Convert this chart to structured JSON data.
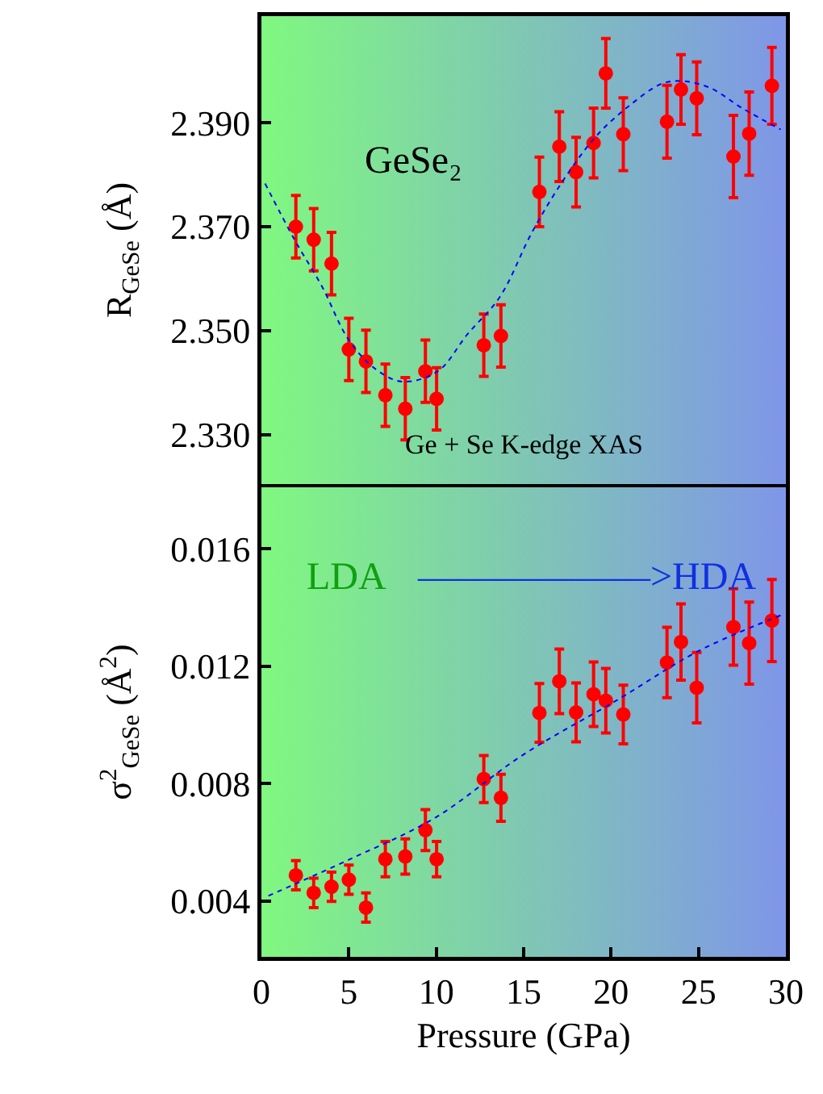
{
  "chart_data": [
    {
      "type": "scatter",
      "ylabel": "R$_{GeSe}$ (Å)",
      "xlim": [
        0,
        30
      ],
      "xticks": [
        0,
        5,
        10,
        15,
        20,
        25,
        30
      ],
      "ylim": [
        2.3205,
        2.4105
      ],
      "yticks": [
        {
          "value": 2.33,
          "label": "2.330"
        },
        {
          "value": 2.35,
          "label": "2.350"
        },
        {
          "value": 2.37,
          "label": "2.370"
        },
        {
          "value": 2.39,
          "label": "2.390"
        }
      ],
      "tick_labels": "y",
      "grid": false,
      "marker": "circle",
      "annotations": [
        "GeSe₂",
        "Ge + Se K-edge XAS"
      ],
      "series": [
        {
          "color": "#ff0000",
          "x": [
            1.97,
            2.99,
            4.01,
            5.0,
            5.98,
            7.09,
            8.23,
            9.38,
            10.02,
            12.72,
            13.7,
            15.9,
            17.04,
            18.0,
            19.0,
            19.7,
            20.7,
            23.2,
            24.0,
            24.9,
            27.0,
            27.9,
            29.2
          ],
          "values": [
            2.37,
            2.3675,
            2.3629,
            2.3464,
            2.3441,
            2.3376,
            2.335,
            2.3422,
            2.3369,
            2.3472,
            2.349,
            2.3767,
            2.3854,
            2.3805,
            2.3861,
            2.3995,
            2.3878,
            2.3902,
            2.3964,
            2.3947,
            2.3835,
            2.3879,
            2.3971
          ],
          "errors": [
            0.006,
            0.006,
            0.006,
            0.006,
            0.006,
            0.006,
            0.006,
            0.006,
            0.006,
            0.006,
            0.006,
            0.0067,
            0.0067,
            0.0067,
            0.0067,
            0.0067,
            0.007,
            0.007,
            0.0067,
            0.007,
            0.0079,
            0.008,
            0.0074
          ]
        },
        {
          "type": "line",
          "color": "#0000ff",
          "line_style": "dotted",
          "marker": "none",
          "x": [
            0.21,
            1.91,
            3.45,
            5.0,
            6.54,
            8.08,
            10.09,
            11.78,
            13.64,
            15.49,
            17.34,
            19.2,
            21.05,
            22.9,
            24.1,
            25.67,
            27.5,
            29.7
          ],
          "values": [
            2.3783,
            2.3674,
            2.3586,
            2.3482,
            2.3426,
            2.3402,
            2.3422,
            2.3493,
            2.3565,
            2.369,
            2.3793,
            2.3876,
            2.3933,
            2.3975,
            2.398,
            2.3967,
            2.3928,
            2.3887
          ]
        }
      ]
    },
    {
      "type": "scatter",
      "xlabel": "Pressure (GPa)",
      "ylabel": "σ$^{2}$$_{GeSe}$ (Å$^{2}$)",
      "xlim": [
        0,
        30
      ],
      "xticks": [
        0,
        5,
        10,
        15,
        20,
        25,
        30
      ],
      "ylim": [
        0.0021,
        0.0181
      ],
      "yticks": [
        0.004,
        0.008,
        0.012,
        0.016
      ],
      "grid": false,
      "marker": "circle",
      "annotations": [
        "LDA",
        "——————>HDA"
      ],
      "series": [
        {
          "color": "#ff0000",
          "x": [
            1.97,
            2.99,
            4.01,
            5.0,
            5.98,
            7.09,
            8.23,
            9.38,
            10.02,
            12.72,
            13.7,
            15.9,
            17.04,
            18.0,
            19.0,
            19.7,
            20.7,
            23.2,
            24.0,
            24.9,
            27.0,
            27.9,
            29.2
          ],
          "values": [
            0.00488,
            0.00428,
            0.00449,
            0.00473,
            0.00378,
            0.00543,
            0.00552,
            0.00642,
            0.00543,
            0.00816,
            0.00752,
            0.01041,
            0.01149,
            0.01043,
            0.01105,
            0.01083,
            0.01036,
            0.01213,
            0.01283,
            0.01127,
            0.01334,
            0.01279,
            0.01356
          ],
          "errors": [
            0.0005,
            0.0005,
            0.0005,
            0.0005,
            0.0005,
            0.0006,
            0.0006,
            0.0007,
            0.0006,
            0.0008,
            0.0008,
            0.001,
            0.0011,
            0.001,
            0.0011,
            0.0011,
            0.001,
            0.0012,
            0.0013,
            0.0012,
            0.0013,
            0.0014,
            0.0014
          ]
        },
        {
          "type": "line",
          "color": "#0000ff",
          "line_style": "dotted",
          "marker": "none",
          "x": [
            0.4,
            5.0,
            9.94,
            14.88,
            20.4,
            25.0,
            29.8
          ],
          "values": [
            0.00418,
            0.00541,
            0.00684,
            0.00895,
            0.01087,
            0.01252,
            0.01376
          ]
        }
      ]
    }
  ]
}
